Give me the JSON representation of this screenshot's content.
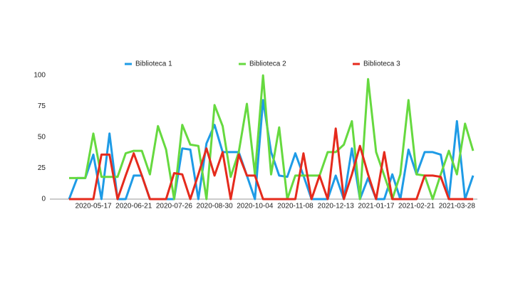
{
  "chart_data": {
    "type": "line",
    "categories": [
      null,
      null,
      null,
      "2020-05-17",
      null,
      null,
      null,
      null,
      "2020-06-21",
      null,
      null,
      null,
      null,
      "2020-07-26",
      null,
      null,
      null,
      null,
      "2020-08-30",
      null,
      null,
      null,
      null,
      "2020-10-04",
      null,
      null,
      null,
      null,
      "2020-11-08",
      null,
      null,
      null,
      null,
      "2020-12-13",
      null,
      null,
      null,
      null,
      "2021-01-17",
      null,
      null,
      null,
      null,
      "2021-02-21",
      null,
      null,
      null,
      null,
      "2021-03-28",
      null,
      null
    ],
    "series": [
      {
        "name": "Biblioteca 1",
        "color": "#1e9be6",
        "values": [
          0,
          17,
          17,
          36,
          0,
          53,
          0,
          0,
          19,
          19,
          0,
          0,
          0,
          0,
          41,
          40,
          0,
          45,
          60,
          38,
          38,
          38,
          19,
          0,
          80,
          38,
          19,
          18,
          37,
          19,
          0,
          0,
          0,
          19,
          0,
          41,
          0,
          17,
          0,
          0,
          20,
          0,
          40,
          20,
          38,
          38,
          36,
          0,
          63,
          0,
          19
        ]
      },
      {
        "name": "Biblioteca 2",
        "color": "#66d93f",
        "values": [
          17,
          17,
          17,
          53,
          18,
          18,
          18,
          37,
          39,
          39,
          20,
          59,
          40,
          0,
          60,
          44,
          43,
          0,
          76,
          59,
          18,
          38,
          77,
          20,
          100,
          20,
          58,
          0,
          19,
          19,
          19,
          19,
          38,
          38,
          44,
          63,
          0,
          97,
          38,
          19,
          0,
          20,
          80,
          20,
          19,
          0,
          20,
          39,
          20,
          61,
          39
        ]
      },
      {
        "name": "Biblioteca 3",
        "color": "#e52a1c",
        "values": [
          0,
          0,
          0,
          0,
          36,
          36,
          0,
          19,
          37,
          19,
          0,
          0,
          0,
          21,
          20,
          0,
          20,
          41,
          19,
          38,
          0,
          36,
          19,
          19,
          0,
          0,
          0,
          0,
          0,
          37,
          0,
          19,
          0,
          57,
          0,
          20,
          43,
          20,
          0,
          38,
          0,
          0,
          0,
          0,
          19,
          19,
          18,
          0,
          0,
          0,
          0
        ]
      }
    ],
    "ylim": [
      0,
      100
    ],
    "yticks": [
      0,
      25,
      50,
      75,
      100
    ],
    "grid": false
  }
}
